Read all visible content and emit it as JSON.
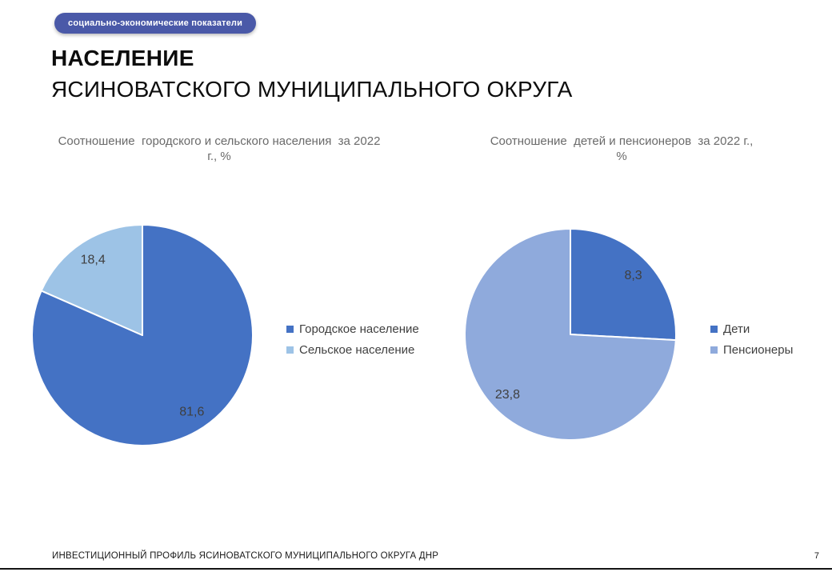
{
  "badge": {
    "label": "социально-экономические показатели",
    "bg_color": "#4a59a8"
  },
  "title": {
    "line1": "НАСЕЛЕНИЕ",
    "line2": "ЯСИНОВАТСКОГО МУНИЦИПАЛЬНОГО ОКРУГА"
  },
  "chart_data": [
    {
      "type": "pie",
      "title": "Соотношение  городского и сельского населения  за 2022 г., %",
      "title_lines": [
        "Соотношение  городского и сельского населения  за 2022",
        "г., %"
      ],
      "legend_position": "right",
      "start_angle_deg": 0,
      "slices": [
        {
          "label": "Городское население",
          "value": 81.6,
          "display": "81,6",
          "color": "#4472c4"
        },
        {
          "label": "Сельское население",
          "value": 18.4,
          "display": "18,4",
          "color": "#9dc3e6"
        }
      ]
    },
    {
      "type": "pie",
      "title": "Соотношение  детей и пенсионеров  за 2022 г., %",
      "title_lines": [
        "Соотношение  детей и пенсионеров  за 2022 г.,",
        "%"
      ],
      "legend_position": "right",
      "start_angle_deg": 0,
      "slices": [
        {
          "label": "Дети",
          "value": 8.3,
          "display": "8,3",
          "color": "#4472c4"
        },
        {
          "label": "Пенсионеры",
          "value": 23.8,
          "display": "23,8",
          "color": "#8faadc"
        }
      ]
    }
  ],
  "style": {
    "data_label_color": "#3f3f3f",
    "slice_separator_color": "#ffffff"
  },
  "footer": {
    "text": "ИНВЕСТИЦИОННЫЙ ПРОФИЛЬ ЯСИНОВАТСКОГО МУНИЦИПАЛЬНОГО ОКРУГА ДНР",
    "page_number": "7"
  }
}
